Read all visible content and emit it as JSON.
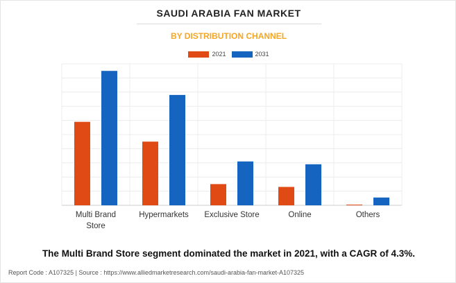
{
  "header": {
    "title": "SAUDI ARABIA FAN MARKET",
    "subtitle": "BY DISTRIBUTION CHANNEL"
  },
  "colors": {
    "series_2021": "#e04a14",
    "series_2031": "#1565c0",
    "subtitle": "#f5a623"
  },
  "chart_data": {
    "type": "bar",
    "categories": [
      "Multi Brand Store",
      "Hypermarkets",
      "Exclusive Store",
      "Online",
      "Others"
    ],
    "category_lines": [
      [
        "Multi Brand",
        "Store"
      ],
      [
        "Hypermarkets"
      ],
      [
        "Exclusive Store"
      ],
      [
        "Online"
      ],
      [
        "Others"
      ]
    ],
    "series": [
      {
        "name": "2021",
        "values": [
          5.9,
          4.5,
          1.5,
          1.3,
          0.05
        ]
      },
      {
        "name": "2031",
        "values": [
          9.5,
          7.8,
          3.1,
          2.9,
          0.55
        ]
      }
    ],
    "ylim": [
      0,
      10
    ],
    "grid": true,
    "legend_position": "top-center",
    "y_tick_labels_shown": false
  },
  "footer": {
    "caption": "The Multi Brand Store segment dominated the market in 2021, with a CAGR of 4.3%.",
    "source": "Report Code : A107325  |  Source : https://www.alliedmarketresearch.com/saudi-arabia-fan-market-A107325"
  }
}
